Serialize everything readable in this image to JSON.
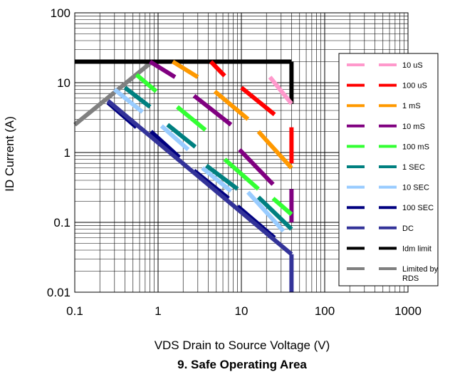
{
  "chart_data": {
    "type": "line",
    "title": "9. Safe Operating Area",
    "xlabel": "VDS Drain to Source Voltage (V)",
    "ylabel": "ID Current (A)",
    "xscale": "log",
    "yscale": "log",
    "xlim": [
      0.1,
      1000
    ],
    "ylim": [
      0.01,
      100
    ],
    "xticks": [
      "0.1",
      "1",
      "10",
      "100",
      "1000"
    ],
    "yticks": [
      "0.01",
      "0.1",
      "1",
      "10",
      "100"
    ],
    "grid": true,
    "legend_position": "right",
    "series": [
      {
        "name": "10 uS",
        "color": "#ff99cc",
        "segments": [
          [
            [
              22,
              12
            ],
            [
              40,
              5
            ]
          ]
        ]
      },
      {
        "name": "100 uS",
        "color": "#ff0000",
        "segments": [
          [
            [
              4.3,
              20
            ],
            [
              6.3,
              12.5
            ]
          ],
          [
            [
              10,
              8.5
            ],
            [
              25,
              3.5
            ]
          ],
          [
            [
              40,
              2.3
            ],
            [
              40,
              0.7
            ]
          ]
        ]
      },
      {
        "name": "1 mS",
        "color": "#ff9900",
        "segments": [
          [
            [
              1.5,
              20
            ],
            [
              3,
              12
            ]
          ],
          [
            [
              4.8,
              7.5
            ],
            [
              12,
              3
            ]
          ],
          [
            [
              16,
              2
            ],
            [
              40,
              0.6
            ]
          ]
        ]
      },
      {
        "name": "10 mS",
        "color": "#800080",
        "segments": [
          [
            [
              0.8,
              20
            ],
            [
              1.6,
              12
            ]
          ],
          [
            [
              2.7,
              6.5
            ],
            [
              7.5,
              2.5
            ]
          ],
          [
            [
              9.5,
              1.1
            ],
            [
              24,
              0.35
            ]
          ],
          [
            [
              40,
              0.3
            ],
            [
              40,
              0.1
            ]
          ]
        ]
      },
      {
        "name": "100 mS",
        "color": "#33ff33",
        "segments": [
          [
            [
              0.55,
              13
            ],
            [
              0.95,
              7.5
            ]
          ],
          [
            [
              1.7,
              4.5
            ],
            [
              3.7,
              2.1
            ]
          ],
          [
            [
              6.3,
              0.8
            ],
            [
              16,
              0.3
            ]
          ],
          [
            [
              24,
              0.22
            ],
            [
              40,
              0.13
            ]
          ]
        ]
      },
      {
        "name": "1 SEC",
        "color": "#008080",
        "segments": [
          [
            [
              0.4,
              8.5
            ],
            [
              0.8,
              4.5
            ]
          ],
          [
            [
              1.3,
              2.5
            ],
            [
              2.8,
              1.2
            ]
          ],
          [
            [
              3.8,
              0.65
            ],
            [
              9,
              0.3
            ]
          ],
          [
            [
              16,
              0.23
            ],
            [
              40,
              0.08
            ]
          ]
        ]
      },
      {
        "name": "10 SEC",
        "color": "#99ccff",
        "segments": [
          [
            [
              0.3,
              8
            ],
            [
              0.65,
              3.8
            ]
          ],
          [
            [
              1.1,
              2.4
            ],
            [
              2.3,
              1.1
            ]
          ],
          [
            [
              3.4,
              0.6
            ],
            [
              7.5,
              0.28
            ]
          ],
          [
            [
              12,
              0.27
            ],
            [
              32,
              0.075
            ]
          ]
        ]
      },
      {
        "name": "100 SEC",
        "color": "#000080",
        "segments": [
          [
            [
              0.25,
              5.2
            ],
            [
              0.55,
              2.3
            ]
          ],
          [
            [
              0.82,
              2
            ],
            [
              1.8,
              0.85
            ]
          ],
          [
            [
              2.7,
              0.55
            ],
            [
              7,
              0.22
            ]
          ],
          [
            [
              9,
              0.17
            ],
            [
              25,
              0.06
            ]
          ]
        ]
      },
      {
        "name": "DC",
        "color": "#333399",
        "segments": [
          [
            [
              0.25,
              5.5
            ],
            [
              40,
              0.035
            ]
          ],
          [
            [
              40,
              0.035
            ],
            [
              40,
              0.01
            ]
          ]
        ]
      },
      {
        "name": "Idm limit",
        "color": "#000000",
        "segments": [
          [
            [
              0.1,
              20
            ],
            [
              40,
              20
            ]
          ],
          [
            [
              40,
              20
            ],
            [
              40,
              5
            ]
          ]
        ]
      },
      {
        "name": "Limited by RDS",
        "color": "#808080",
        "segments": [
          [
            [
              0.1,
              2.5
            ],
            [
              0.85,
              20
            ]
          ]
        ]
      }
    ]
  }
}
